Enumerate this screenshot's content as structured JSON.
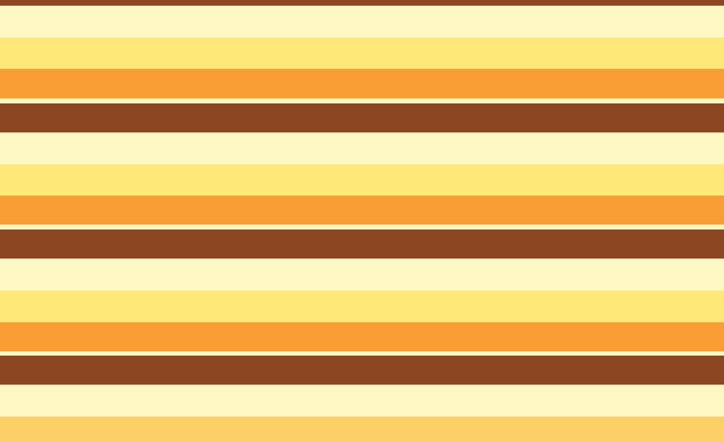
{
  "pattern": "horizontal-stripes",
  "colors": {
    "brown": "#8c4622",
    "cream": "#fef8c4",
    "yellow": "#fee878",
    "orange": "#f99e35",
    "gold": "#fdd067"
  }
}
